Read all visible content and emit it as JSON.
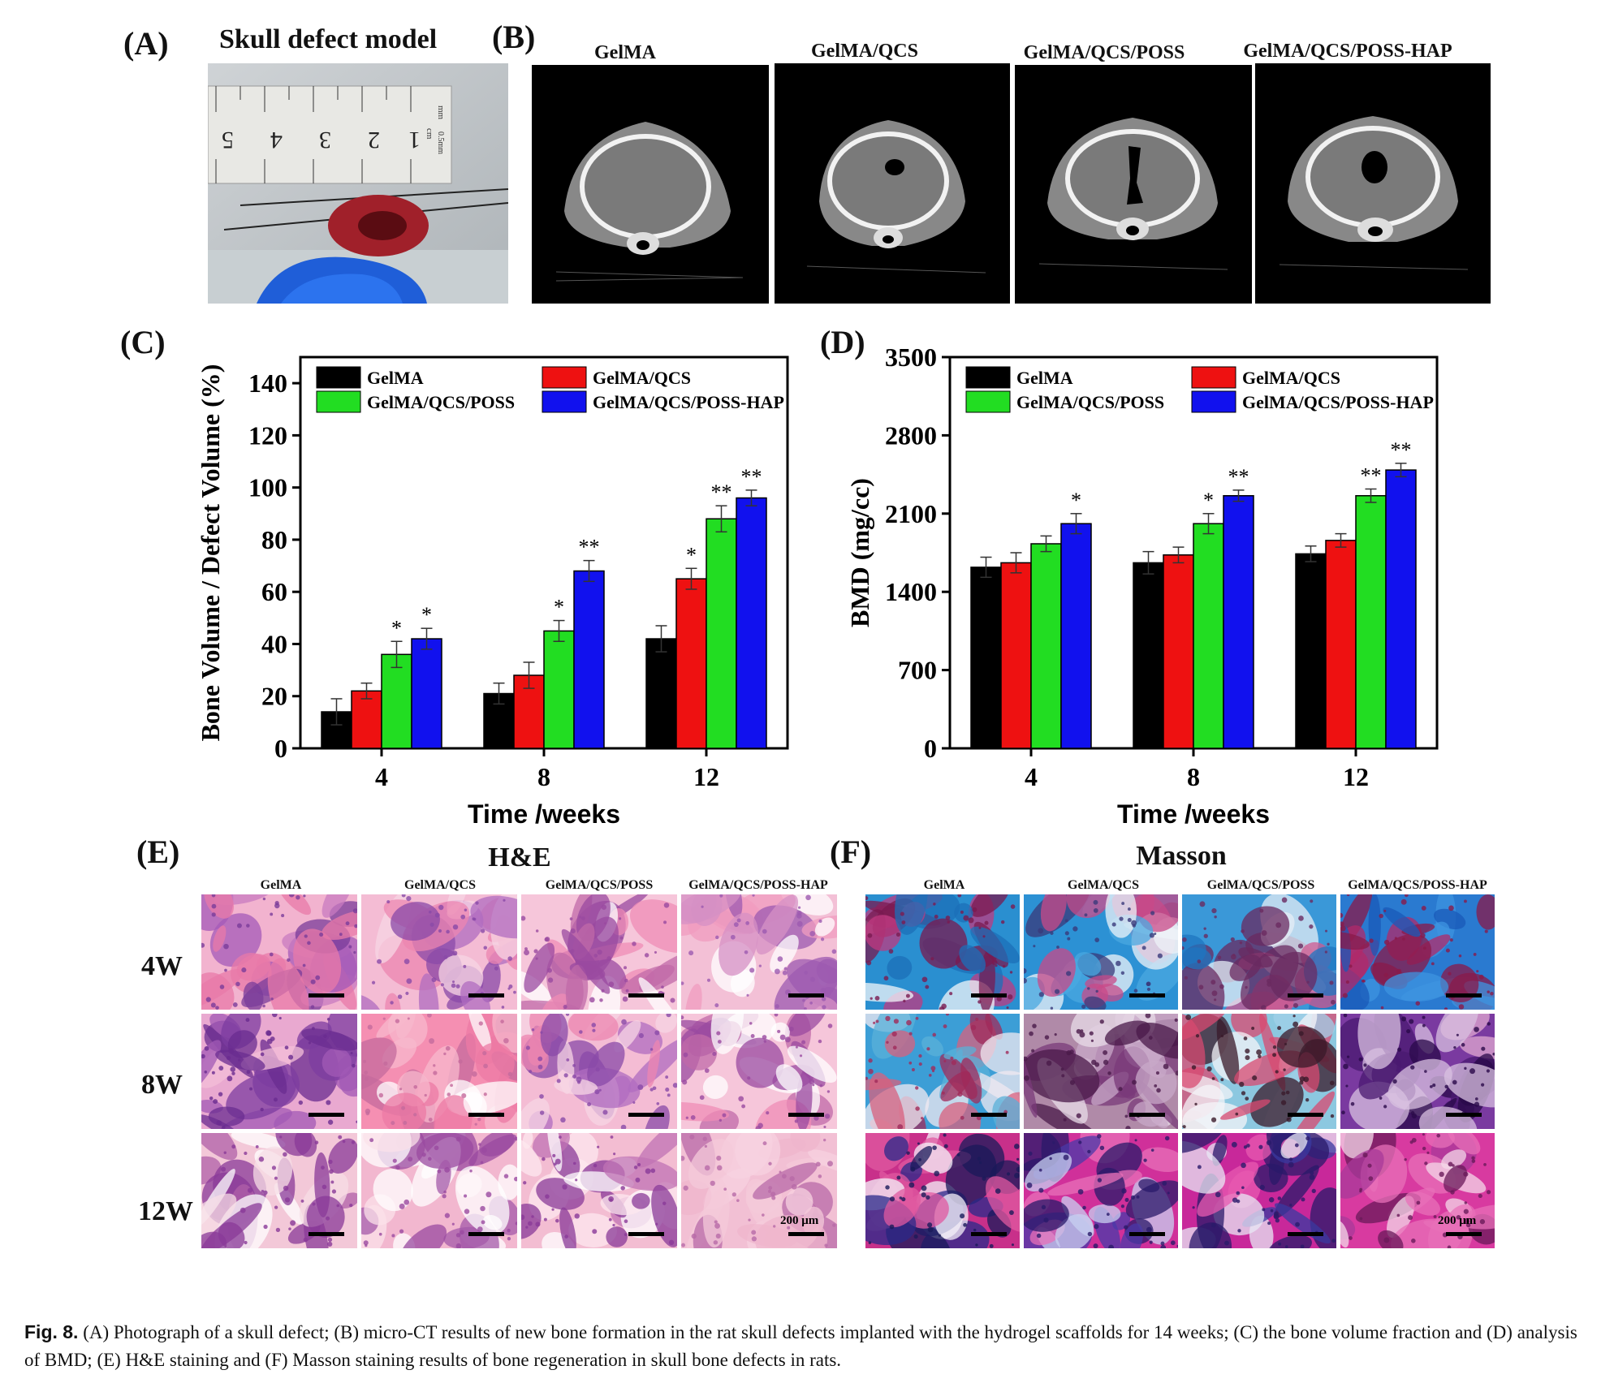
{
  "panelA": {
    "label": "(A)",
    "title": "Skull defect model",
    "ruler_numbers": [
      "5",
      "4",
      "3",
      "2",
      "1"
    ],
    "ruler_units": [
      "mm",
      "cm",
      "0.5mm"
    ]
  },
  "panelB": {
    "label": "(B)",
    "columns": [
      "GelMA",
      "GelMA/QCS",
      "GelMA/QCS/POSS",
      "GelMA/QCS/POSS-HAP"
    ]
  },
  "panelC": {
    "label": "(C)"
  },
  "panelD": {
    "label": "(D)"
  },
  "panelE": {
    "label": "(E)",
    "title": "H&E",
    "columns": [
      "GelMA",
      "GelMA/QCS",
      "GelMA/QCS/POSS",
      "GelMA/QCS/POSS-HAP"
    ],
    "rows": [
      "4W",
      "8W",
      "12W"
    ],
    "scale": "200 μm"
  },
  "panelF": {
    "label": "(F)",
    "title": "Masson",
    "columns": [
      "GelMA",
      "GelMA/QCS",
      "GelMA/QCS/POSS",
      "GelMA/QCS/POSS-HAP"
    ],
    "scale": "200 μm"
  },
  "caption": {
    "fig": "Fig. 8.",
    "text": " (A) Photograph of a skull defect; (B) micro-CT results of new bone formation in the rat skull defects implanted with the hydrogel scaffolds for 14 weeks; (C) the bone volume fraction and (D) analysis of BMD; (E) H&E staining and (F) Masson staining results of bone regeneration in skull bone defects in rats."
  },
  "colors": {
    "GelMA": "#000000",
    "GelMA/QCS": "#ee1111",
    "GelMA/QCS/POSS": "#22dd22",
    "GelMA/QCS/POSS-HAP": "#1111ee",
    "he_bg": "#f0a8c8",
    "he_purple": "#9050b0",
    "masson_blue": "#2a8fd0",
    "masson_red": "#c02070"
  },
  "chart_data": [
    {
      "type": "bar",
      "categories": [
        "4",
        "8",
        "12"
      ],
      "series": [
        {
          "name": "GelMA",
          "values": [
            14,
            21,
            42
          ],
          "errors": [
            5,
            4,
            5
          ],
          "sig": [
            "",
            "",
            ""
          ]
        },
        {
          "name": "GelMA/QCS",
          "values": [
            22,
            28,
            65
          ],
          "errors": [
            3,
            5,
            4
          ],
          "sig": [
            "",
            "",
            "*"
          ]
        },
        {
          "name": "GelMA/QCS/POSS",
          "values": [
            36,
            45,
            88
          ],
          "errors": [
            5,
            4,
            5
          ],
          "sig": [
            "*",
            "*",
            "**"
          ]
        },
        {
          "name": "GelMA/QCS/POSS-HAP",
          "values": [
            42,
            68,
            96
          ],
          "errors": [
            4,
            4,
            3
          ],
          "sig": [
            "*",
            "**",
            "**"
          ]
        }
      ],
      "xlabel": "Time /weeks",
      "ylabel": "Bone Volume / Defect Volume (%)",
      "ylim": [
        0,
        150
      ],
      "yticks": [
        0,
        20,
        40,
        60,
        80,
        100,
        120,
        140
      ],
      "legend": "top"
    },
    {
      "type": "bar",
      "categories": [
        "4",
        "8",
        "12"
      ],
      "series": [
        {
          "name": "GelMA",
          "values": [
            1620,
            1660,
            1740
          ],
          "errors": [
            90,
            100,
            70
          ],
          "sig": [
            "",
            "",
            ""
          ]
        },
        {
          "name": "GelMA/QCS",
          "values": [
            1660,
            1730,
            1860
          ],
          "errors": [
            90,
            70,
            60
          ],
          "sig": [
            "",
            "",
            ""
          ]
        },
        {
          "name": "GelMA/QCS/POSS",
          "values": [
            1830,
            2010,
            2260
          ],
          "errors": [
            70,
            90,
            60
          ],
          "sig": [
            "",
            "*",
            "**"
          ]
        },
        {
          "name": "GelMA/QCS/POSS-HAP",
          "values": [
            2010,
            2260,
            2490
          ],
          "errors": [
            90,
            50,
            60
          ],
          "sig": [
            "*",
            "**",
            "**"
          ]
        }
      ],
      "xlabel": "Time /weeks",
      "ylabel": "BMD (mg/cc)",
      "ylim": [
        0,
        3500
      ],
      "yticks": [
        0,
        700,
        1400,
        2100,
        2800,
        3500
      ],
      "legend": "top"
    }
  ]
}
